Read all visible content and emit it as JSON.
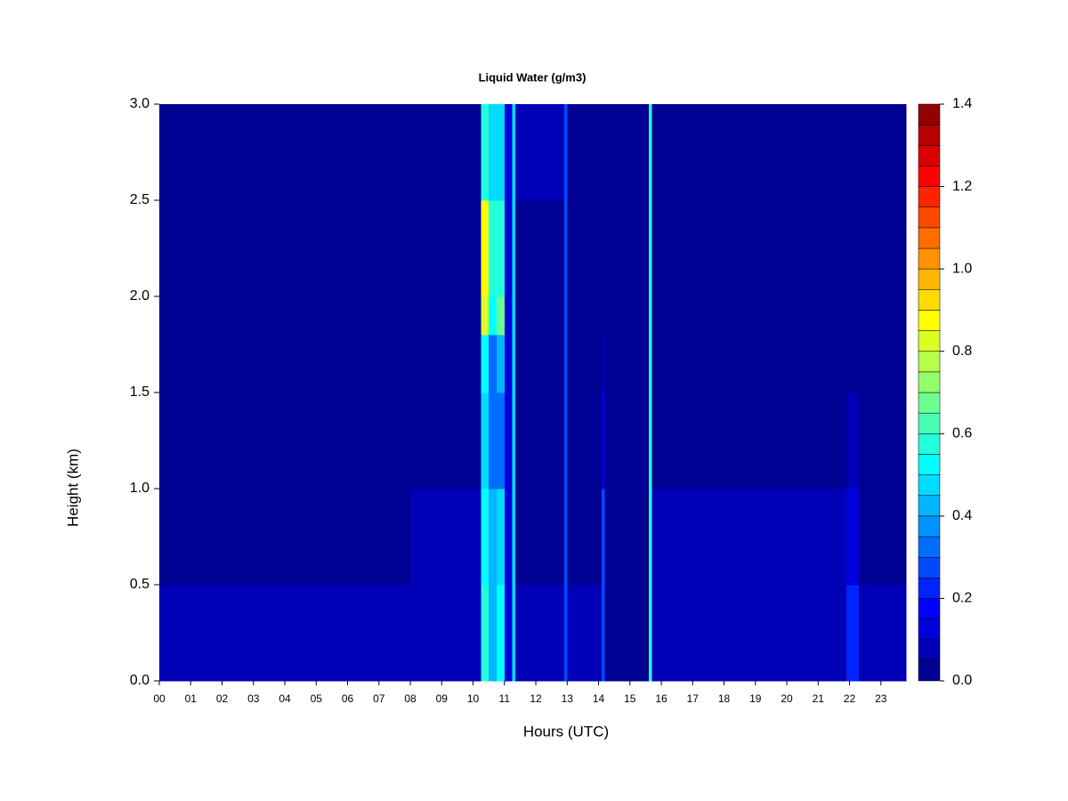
{
  "chart_data": {
    "type": "heatmap",
    "title": "Liquid Water (g/m3)",
    "x_label": "Hours (UTC)",
    "y_label": "Height (km)",
    "x_edges": [
      0,
      8,
      10.25,
      10.5,
      10.75,
      11,
      11.25,
      11.35,
      12.9,
      13.0,
      14.1,
      14.2,
      15.6,
      15.7,
      21.9,
      22.3,
      23.8
    ],
    "y_edges": [
      0,
      0.5,
      1.0,
      1.5,
      1.8,
      2.0,
      2.5,
      3.0
    ],
    "values": [
      [
        0.05,
        0.03,
        0.01,
        0,
        0,
        0,
        0
      ],
      [
        0.08,
        0.05,
        0.02,
        0,
        0,
        0,
        0
      ],
      [
        0.6,
        0.5,
        0.45,
        0.5,
        0.8,
        0.85,
        0.6
      ],
      [
        0.4,
        0.4,
        0.35,
        0.35,
        0.5,
        0.55,
        0.45
      ],
      [
        0.5,
        0.45,
        0.35,
        0.4,
        0.7,
        0.6,
        0.45
      ],
      [
        0.1,
        0.1,
        0.1,
        0.1,
        0.1,
        0.1,
        0.1
      ],
      [
        0.45,
        0.45,
        0.45,
        0.45,
        0.45,
        0.45,
        0.45
      ],
      [
        0.05,
        0.03,
        0.02,
        0.02,
        0.02,
        0.02,
        0.05
      ],
      [
        0.3,
        0.3,
        0.3,
        0.3,
        0.3,
        0.3,
        0.3
      ],
      [
        0.05,
        0.03,
        0.01,
        0,
        0,
        0,
        0
      ],
      [
        0.3,
        0.25,
        0.15,
        0.05,
        0,
        0,
        0
      ],
      [
        0.03,
        0.01,
        0,
        0,
        0,
        0,
        0
      ],
      [
        0.6,
        0.6,
        0.6,
        0.6,
        0.6,
        0.6,
        0.6
      ],
      [
        0.08,
        0.05,
        0.01,
        0,
        0,
        0,
        0
      ],
      [
        0.2,
        0.15,
        0.05,
        0.02,
        0.01,
        0,
        0
      ],
      [
        0.06,
        0.02,
        0,
        0,
        0,
        0,
        0
      ]
    ],
    "colormap": "jet",
    "clim": [
      0,
      1.4
    ],
    "level_step": 0.05,
    "xlim": [
      0,
      23.8
    ],
    "ylim": [
      0,
      3.0
    ],
    "xticks": [
      {
        "value": 0,
        "label": "00"
      },
      {
        "value": 1,
        "label": "01"
      },
      {
        "value": 2,
        "label": "02"
      },
      {
        "value": 3,
        "label": "03"
      },
      {
        "value": 4,
        "label": "04"
      },
      {
        "value": 5,
        "label": "05"
      },
      {
        "value": 6,
        "label": "06"
      },
      {
        "value": 7,
        "label": "07"
      },
      {
        "value": 8,
        "label": "08"
      },
      {
        "value": 9,
        "label": "09"
      },
      {
        "value": 10,
        "label": "10"
      },
      {
        "value": 11,
        "label": "11"
      },
      {
        "value": 12,
        "label": "12"
      },
      {
        "value": 13,
        "label": "13"
      },
      {
        "value": 14,
        "label": "14"
      },
      {
        "value": 15,
        "label": "15"
      },
      {
        "value": 16,
        "label": "16"
      },
      {
        "value": 17,
        "label": "17"
      },
      {
        "value": 18,
        "label": "18"
      },
      {
        "value": 19,
        "label": "19"
      },
      {
        "value": 20,
        "label": "20"
      },
      {
        "value": 21,
        "label": "21"
      },
      {
        "value": 22,
        "label": "22"
      },
      {
        "value": 23,
        "label": "23"
      }
    ],
    "yticks": [
      {
        "value": 0,
        "label": "0.0"
      },
      {
        "value": 0.5,
        "label": "0.5"
      },
      {
        "value": 1,
        "label": "1.0"
      },
      {
        "value": 1.5,
        "label": "1.5"
      },
      {
        "value": 2,
        "label": "2.0"
      },
      {
        "value": 2.5,
        "label": "2.5"
      },
      {
        "value": 3,
        "label": "3.0"
      }
    ],
    "colorbar_ticks": [
      {
        "value": 0,
        "label": "0.0"
      },
      {
        "value": 0.2,
        "label": "0.2"
      },
      {
        "value": 0.4,
        "label": "0.4"
      },
      {
        "value": 0.6,
        "label": "0.6"
      },
      {
        "value": 0.8,
        "label": "0.8"
      },
      {
        "value": 1,
        "label": "1.0"
      },
      {
        "value": 1.2,
        "label": "1.2"
      },
      {
        "value": 1.4,
        "label": "1.4"
      }
    ]
  }
}
